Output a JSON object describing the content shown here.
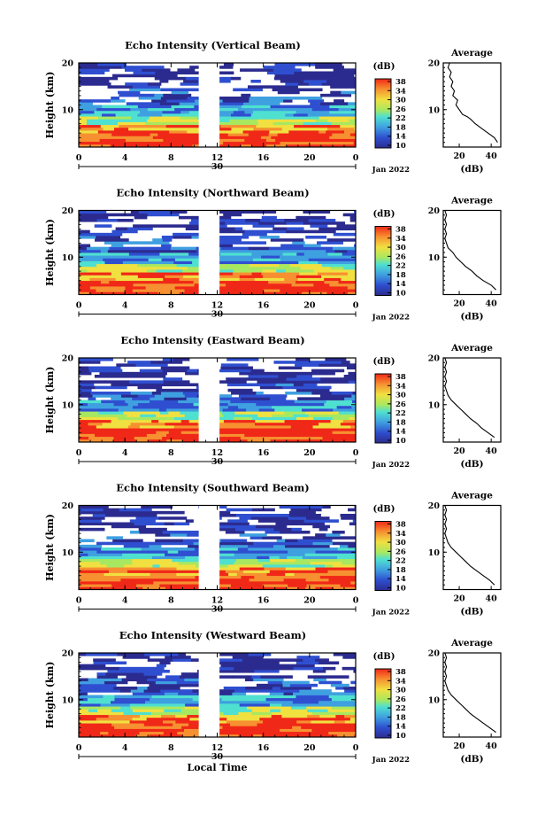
{
  "chart_data": [
    {
      "type": "heatmap",
      "title": "Echo Intensity (Vertical Beam)",
      "ylabel": "Height (km)",
      "x_ticks": [
        "0",
        "4",
        "8",
        "12",
        "16",
        "20",
        "0"
      ],
      "xlim": [
        0,
        24
      ],
      "y_ticks": [
        "20",
        "10"
      ],
      "ylim": [
        2,
        20
      ],
      "date_marker": "30",
      "month_label": "Jan 2022",
      "gap": [
        10.4,
        12.2
      ],
      "colorbar": {
        "unit": "(dB)",
        "ticks": [
          "38",
          "34",
          "30",
          "26",
          "22",
          "18",
          "14",
          "10"
        ],
        "range": [
          10,
          38
        ]
      },
      "average": {
        "title": "Average",
        "xlabel": "(dB)",
        "x_ticks": [
          "20",
          "40"
        ],
        "xlim": [
          10,
          46
        ],
        "y_ticks": [
          "20",
          "10"
        ],
        "ylim": [
          2,
          20
        ],
        "profile": [
          [
            44,
            3
          ],
          [
            42,
            4
          ],
          [
            38,
            5
          ],
          [
            34,
            6
          ],
          [
            30,
            7
          ],
          [
            27,
            8
          ],
          [
            25,
            8.5
          ],
          [
            22,
            9
          ],
          [
            20,
            10
          ],
          [
            18,
            11
          ],
          [
            19,
            12
          ],
          [
            16,
            13
          ],
          [
            17,
            14
          ],
          [
            15,
            15
          ],
          [
            16,
            16
          ],
          [
            14,
            17
          ],
          [
            15,
            18
          ],
          [
            13,
            19
          ],
          [
            14,
            20
          ]
        ]
      }
    },
    {
      "type": "heatmap",
      "title": "Echo Intensity (Northward Beam)",
      "ylabel": "Height (km)",
      "x_ticks": [
        "0",
        "4",
        "8",
        "12",
        "16",
        "20",
        "0"
      ],
      "xlim": [
        0,
        24
      ],
      "y_ticks": [
        "20",
        "10"
      ],
      "ylim": [
        2,
        20
      ],
      "date_marker": "30",
      "month_label": "Jan 2022",
      "gap": [
        10.4,
        12.2
      ],
      "colorbar": {
        "unit": "(dB)",
        "ticks": [
          "38",
          "34",
          "30",
          "26",
          "22",
          "18",
          "14",
          "10"
        ],
        "range": [
          10,
          38
        ]
      },
      "average": {
        "title": "Average",
        "xlabel": "(dB)",
        "x_ticks": [
          "20",
          "40"
        ],
        "xlim": [
          10,
          46
        ],
        "y_ticks": [
          "20",
          "10"
        ],
        "ylim": [
          2,
          20
        ],
        "profile": [
          [
            43,
            3
          ],
          [
            40,
            4
          ],
          [
            35,
            5
          ],
          [
            31,
            6
          ],
          [
            28,
            7
          ],
          [
            24,
            8
          ],
          [
            21,
            9
          ],
          [
            18,
            10
          ],
          [
            16,
            11
          ],
          [
            13,
            12
          ],
          [
            12,
            13
          ],
          [
            11,
            14
          ],
          [
            12,
            15
          ],
          [
            11,
            16
          ],
          [
            12,
            17
          ],
          [
            11,
            18
          ],
          [
            12,
            19
          ],
          [
            11,
            20
          ]
        ]
      }
    },
    {
      "type": "heatmap",
      "title": "Echo Intensity (Eastward Beam)",
      "ylabel": "Height (km)",
      "x_ticks": [
        "0",
        "4",
        "8",
        "12",
        "16",
        "20",
        "0"
      ],
      "xlim": [
        0,
        24
      ],
      "y_ticks": [
        "20",
        "10"
      ],
      "ylim": [
        2,
        20
      ],
      "date_marker": "30",
      "month_label": "Jan 2022",
      "gap": [
        10.4,
        12.2
      ],
      "colorbar": {
        "unit": "(dB)",
        "ticks": [
          "38",
          "34",
          "30",
          "26",
          "22",
          "18",
          "14",
          "10"
        ],
        "range": [
          10,
          38
        ]
      },
      "average": {
        "title": "Average",
        "xlabel": "(dB)",
        "x_ticks": [
          "20",
          "40"
        ],
        "xlim": [
          10,
          46
        ],
        "y_ticks": [
          "20",
          "10"
        ],
        "ylim": [
          2,
          20
        ],
        "profile": [
          [
            42,
            3
          ],
          [
            38,
            4
          ],
          [
            34,
            5
          ],
          [
            31,
            6
          ],
          [
            27,
            7
          ],
          [
            24,
            8
          ],
          [
            21,
            9
          ],
          [
            18,
            10
          ],
          [
            15,
            11
          ],
          [
            13,
            12
          ],
          [
            12,
            13
          ],
          [
            11,
            14
          ],
          [
            12,
            15
          ],
          [
            11,
            16
          ],
          [
            12,
            17
          ],
          [
            11,
            18
          ],
          [
            12,
            19
          ],
          [
            11,
            20
          ]
        ]
      }
    },
    {
      "type": "heatmap",
      "title": "Echo Intensity (Southward Beam)",
      "ylabel": "Height (km)",
      "x_ticks": [
        "0",
        "4",
        "8",
        "12",
        "16",
        "20",
        "0"
      ],
      "xlim": [
        0,
        24
      ],
      "y_ticks": [
        "20",
        "10"
      ],
      "ylim": [
        2,
        20
      ],
      "date_marker": "30",
      "month_label": "Jan 2022",
      "gap": [
        10.4,
        12.2
      ],
      "colorbar": {
        "unit": "(dB)",
        "ticks": [
          "38",
          "34",
          "30",
          "26",
          "22",
          "18",
          "14",
          "10"
        ],
        "range": [
          10,
          38
        ]
      },
      "average": {
        "title": "Average",
        "xlabel": "(dB)",
        "x_ticks": [
          "20",
          "40"
        ],
        "xlim": [
          10,
          46
        ],
        "y_ticks": [
          "20",
          "10"
        ],
        "ylim": [
          2,
          20
        ],
        "profile": [
          [
            42,
            3
          ],
          [
            39,
            4
          ],
          [
            35,
            5
          ],
          [
            31,
            6
          ],
          [
            27,
            7
          ],
          [
            24,
            8
          ],
          [
            21,
            9
          ],
          [
            18,
            10
          ],
          [
            15,
            11
          ],
          [
            13,
            12
          ],
          [
            12,
            13
          ],
          [
            11,
            14
          ],
          [
            12,
            15
          ],
          [
            11,
            16
          ],
          [
            12,
            17
          ],
          [
            11,
            18
          ],
          [
            12,
            19
          ],
          [
            11,
            20
          ]
        ]
      }
    },
    {
      "type": "heatmap",
      "title": "Echo Intensity (Westward Beam)",
      "ylabel": "Height (km)",
      "xlabel": "Local Time",
      "x_ticks": [
        "0",
        "4",
        "8",
        "12",
        "16",
        "20",
        "0"
      ],
      "xlim": [
        0,
        24
      ],
      "y_ticks": [
        "20",
        "10"
      ],
      "ylim": [
        2,
        20
      ],
      "date_marker": "30",
      "month_label": "Jan 2022",
      "gap": [
        10.4,
        12.2
      ],
      "colorbar": {
        "unit": "(dB)",
        "ticks": [
          "38",
          "34",
          "30",
          "26",
          "22",
          "18",
          "14",
          "10"
        ],
        "range": [
          10,
          38
        ]
      },
      "average": {
        "title": "Average",
        "xlabel": "(dB)",
        "x_ticks": [
          "20",
          "40"
        ],
        "xlim": [
          10,
          46
        ],
        "y_ticks": [
          "20",
          "10"
        ],
        "ylim": [
          2,
          20
        ],
        "profile": [
          [
            43,
            3
          ],
          [
            39,
            4
          ],
          [
            35,
            5
          ],
          [
            31,
            6
          ],
          [
            27,
            7
          ],
          [
            24,
            8
          ],
          [
            21,
            9
          ],
          [
            18,
            10
          ],
          [
            15,
            11
          ],
          [
            13,
            12
          ],
          [
            12,
            13
          ],
          [
            11,
            14
          ],
          [
            12,
            15
          ],
          [
            11,
            16
          ],
          [
            12,
            17
          ],
          [
            11,
            18
          ],
          [
            12,
            19
          ],
          [
            11,
            20
          ]
        ]
      }
    }
  ]
}
